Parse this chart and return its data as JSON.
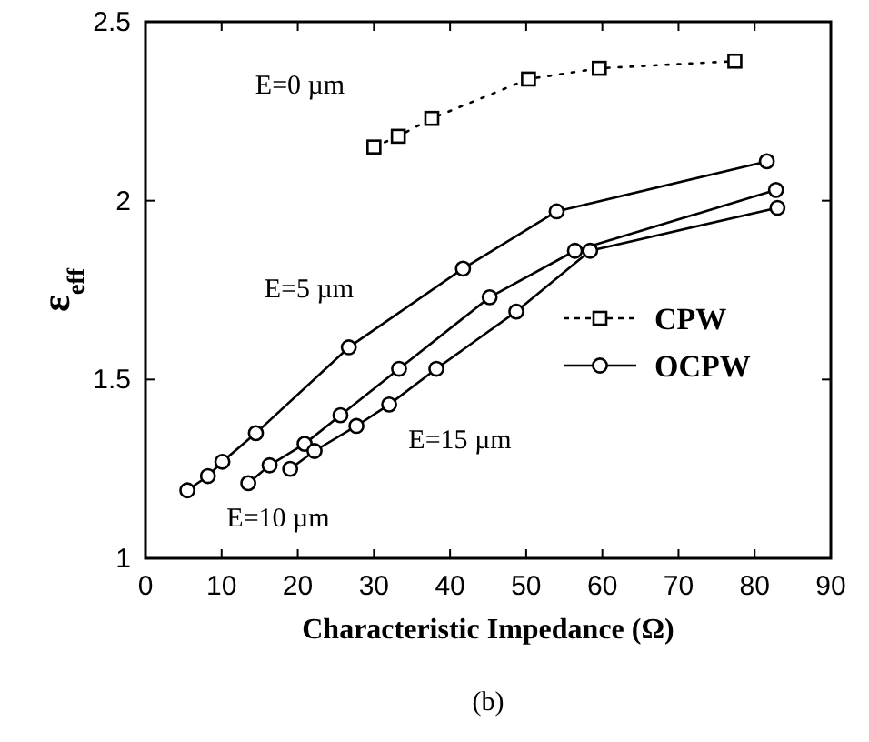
{
  "chart_data": {
    "type": "line",
    "xlabel": "Characteristic Impedance (Ω)",
    "ylabel": "ε$_{eff}$",
    "xlim": [
      0,
      90
    ],
    "xticks": [
      0,
      10,
      20,
      30,
      40,
      50,
      60,
      70,
      80,
      90
    ],
    "ylim": [
      1,
      2.5
    ],
    "yticks": [
      1,
      1.5,
      2,
      2.5
    ],
    "grid": false,
    "legend": "right",
    "series": [
      {
        "name": "CPW",
        "color": "#000000",
        "marker": "square",
        "line_style": "dotted",
        "x": [
          30,
          33.2,
          37.6,
          50.3,
          59.6,
          77.4
        ],
        "values": [
          2.15,
          2.18,
          2.23,
          2.34,
          2.37,
          2.39
        ]
      },
      {
        "name": "OCPW",
        "color": "#000000",
        "marker": "circle",
        "line_style": "solid",
        "x": [
          5.5,
          8.2,
          10.1,
          14.5,
          26.7,
          41.7,
          54,
          81.6
        ],
        "values": [
          1.19,
          1.23,
          1.27,
          1.35,
          1.59,
          1.81,
          1.97,
          2.11
        ]
      },
      {
        "color": "#000000",
        "marker": "circle",
        "line_style": "solid",
        "x": [
          13.5,
          16.3,
          20.9,
          25.6,
          33.3,
          45.2,
          56.4,
          82.8
        ],
        "values": [
          1.21,
          1.26,
          1.32,
          1.4,
          1.53,
          1.73,
          1.86,
          2.03
        ]
      },
      {
        "color": "#000000",
        "marker": "circle",
        "line_style": "solid",
        "x": [
          19,
          22.2,
          27.7,
          32,
          38.2,
          48.7,
          58.4,
          83
        ],
        "values": [
          1.25,
          1.3,
          1.37,
          1.43,
          1.53,
          1.69,
          1.86,
          1.98
        ]
      }
    ],
    "annotations": [
      "E=0 µm",
      "E=5 µm",
      "E=15 µm",
      "E=10 µm",
      "(b)"
    ]
  }
}
